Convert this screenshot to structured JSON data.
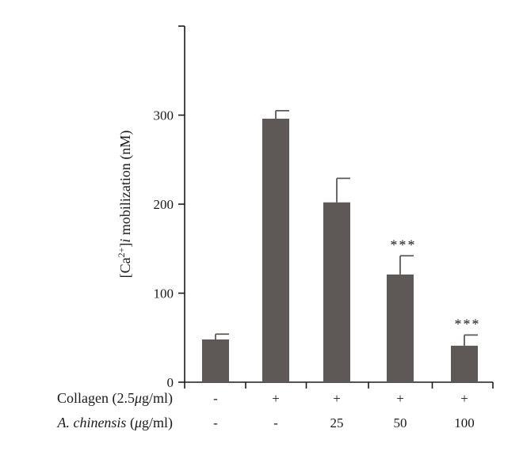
{
  "chart_data": {
    "type": "bar",
    "ylabel": {
      "prefix": "[Ca",
      "superscript": "2+",
      "suffix_bracket": "]",
      "italic": "i",
      "rest": " mobilization (nM)"
    },
    "ylim": [
      0,
      400
    ],
    "yticks": [
      0,
      100,
      200,
      300
    ],
    "bar_color": "#5e5856",
    "values": [
      48,
      296,
      202,
      121,
      41
    ],
    "errors": [
      6,
      9,
      27,
      21,
      12
    ],
    "significance": [
      "",
      "",
      "",
      "***",
      "***"
    ],
    "conditions": [
      {
        "label_main": "Collagen (2.5",
        "label_unit_greek": "μ",
        "label_end": "g/ml)",
        "values": [
          "-",
          "+",
          "+",
          "+",
          "+"
        ]
      },
      {
        "label_italic": "A. chinensis",
        "label_mid": " (",
        "label_unit_greek": "μ",
        "label_end": "g/ml)",
        "values": [
          "-",
          "-",
          "25",
          "50",
          "100"
        ]
      }
    ]
  }
}
